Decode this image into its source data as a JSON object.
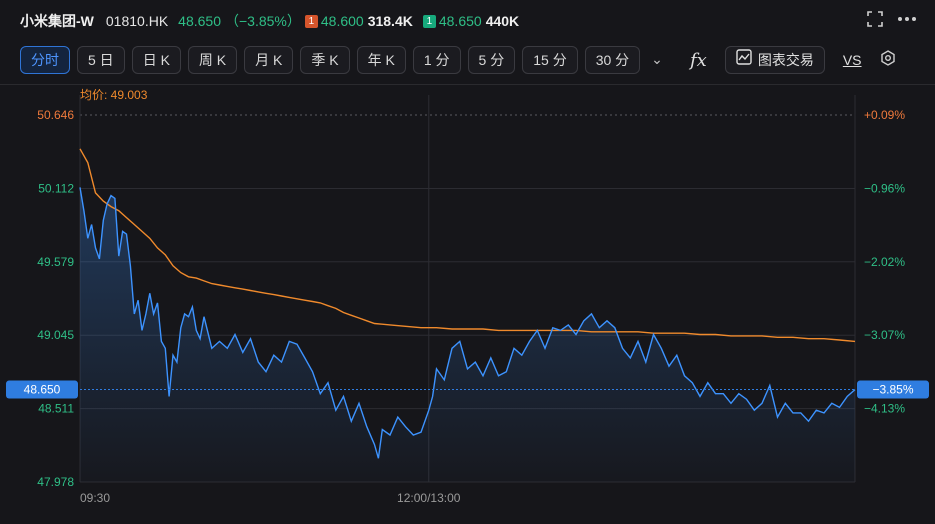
{
  "ticker": {
    "name": "小米集团-W",
    "code": "01810.HK",
    "price": "48.650",
    "change": "（−3.85%）",
    "ask_level": "1",
    "ask_price": "48.600",
    "ask_volume": "318.4K",
    "bid_level": "1",
    "bid_price": "48.650",
    "bid_volume": "440K"
  },
  "top_icons": {
    "fullscreen": "fullscreen-icon",
    "more": "more-icon"
  },
  "tabs": [
    {
      "label": "分时",
      "active": true
    },
    {
      "label": "5 日"
    },
    {
      "label": "日 K"
    },
    {
      "label": "周 K"
    },
    {
      "label": "月 K"
    },
    {
      "label": "季 K"
    },
    {
      "label": "年 K"
    },
    {
      "label": "1 分"
    },
    {
      "label": "5 分"
    },
    {
      "label": "15 分"
    },
    {
      "label": "30 分"
    }
  ],
  "tools": {
    "trade_label": "图表交易",
    "vs_label": "VS"
  },
  "colors": {
    "background": "#16161a",
    "price_line": "#3d93ff",
    "avg_line": "#f08a2c",
    "up": "#f07a3c",
    "down": "#2fbf87",
    "current_tag": "#2f7de0"
  },
  "chart_data": {
    "type": "line",
    "avg_label": "均价: 49.003",
    "y_ticks_left": [
      "50.646",
      "50.112",
      "49.579",
      "49.045",
      "48.511",
      "47.978"
    ],
    "y_ticks_right": [
      "+0.09%",
      "−0.96%",
      "−2.02%",
      "−3.07%",
      "−4.13%"
    ],
    "y_tick_values": [
      50.646,
      50.112,
      49.579,
      49.045,
      48.511,
      47.978
    ],
    "right_tick_values": [
      50.646,
      50.112,
      49.579,
      49.045,
      48.511
    ],
    "ylim": [
      47.978,
      50.646
    ],
    "x_labels": [
      "09:30",
      "12:00/13:00"
    ],
    "x_range": [
      0,
      100
    ],
    "x_label_positions": [
      0,
      45
    ],
    "current_price_label": "48.650",
    "current_pct_label": "−3.85%",
    "current_value": 48.65,
    "series": [
      {
        "values": [
          [
            0,
            50.12
          ],
          [
            0.5,
            49.95
          ],
          [
            1,
            49.75
          ],
          [
            1.5,
            49.85
          ],
          [
            2,
            49.68
          ],
          [
            2.5,
            49.6
          ],
          [
            3,
            49.88
          ],
          [
            3.5,
            50.0
          ],
          [
            4,
            50.06
          ],
          [
            4.5,
            50.04
          ],
          [
            5,
            49.62
          ],
          [
            5.5,
            49.8
          ],
          [
            6,
            49.78
          ],
          [
            6.5,
            49.55
          ],
          [
            7,
            49.2
          ],
          [
            7.5,
            49.3
          ],
          [
            8,
            49.08
          ],
          [
            8.5,
            49.2
          ],
          [
            9,
            49.35
          ],
          [
            9.5,
            49.2
          ],
          [
            10,
            49.28
          ],
          [
            10.5,
            49.0
          ],
          [
            11,
            48.95
          ],
          [
            11.5,
            48.6
          ],
          [
            12,
            48.9
          ],
          [
            12.5,
            48.85
          ],
          [
            13,
            49.1
          ],
          [
            13.5,
            49.2
          ],
          [
            14,
            49.18
          ],
          [
            14.5,
            49.25
          ],
          [
            15,
            49.08
          ],
          [
            15.5,
            49.02
          ],
          [
            16,
            49.18
          ],
          [
            17,
            48.95
          ],
          [
            18,
            49.0
          ],
          [
            19,
            48.95
          ],
          [
            20,
            49.05
          ],
          [
            21,
            48.92
          ],
          [
            22,
            49.02
          ],
          [
            23,
            48.85
          ],
          [
            24,
            48.78
          ],
          [
            25,
            48.9
          ],
          [
            26,
            48.85
          ],
          [
            27,
            49.0
          ],
          [
            28,
            48.98
          ],
          [
            29,
            48.88
          ],
          [
            30,
            48.78
          ],
          [
            31,
            48.62
          ],
          [
            32,
            48.7
          ],
          [
            33,
            48.5
          ],
          [
            34,
            48.6
          ],
          [
            35,
            48.42
          ],
          [
            36,
            48.55
          ],
          [
            37,
            48.38
          ],
          [
            38,
            48.25
          ],
          [
            38.5,
            48.15
          ],
          [
            39,
            48.36
          ],
          [
            40,
            48.32
          ],
          [
            41,
            48.45
          ],
          [
            42,
            48.38
          ],
          [
            43,
            48.32
          ],
          [
            44,
            48.34
          ],
          [
            45,
            48.5
          ],
          [
            45.5,
            48.6
          ],
          [
            46,
            48.8
          ],
          [
            47,
            48.72
          ],
          [
            48,
            48.95
          ],
          [
            49,
            49.0
          ],
          [
            50,
            48.8
          ],
          [
            51,
            48.85
          ],
          [
            52,
            48.75
          ],
          [
            53,
            48.88
          ],
          [
            54,
            48.75
          ],
          [
            55,
            48.78
          ],
          [
            56,
            48.95
          ],
          [
            57,
            48.9
          ],
          [
            58,
            49.0
          ],
          [
            59,
            49.08
          ],
          [
            60,
            48.95
          ],
          [
            61,
            49.1
          ],
          [
            62,
            49.08
          ],
          [
            63,
            49.12
          ],
          [
            64,
            49.05
          ],
          [
            65,
            49.15
          ],
          [
            66,
            49.2
          ],
          [
            67,
            49.1
          ],
          [
            68,
            49.15
          ],
          [
            69,
            49.1
          ],
          [
            70,
            48.95
          ],
          [
            71,
            48.88
          ],
          [
            72,
            49.0
          ],
          [
            73,
            48.85
          ],
          [
            74,
            49.05
          ],
          [
            75,
            48.95
          ],
          [
            76,
            48.82
          ],
          [
            77,
            48.9
          ],
          [
            78,
            48.75
          ],
          [
            79,
            48.7
          ],
          [
            80,
            48.6
          ],
          [
            81,
            48.7
          ],
          [
            82,
            48.62
          ],
          [
            83,
            48.62
          ],
          [
            84,
            48.55
          ],
          [
            85,
            48.62
          ],
          [
            86,
            48.58
          ],
          [
            87,
            48.5
          ],
          [
            88,
            48.55
          ],
          [
            89,
            48.68
          ],
          [
            90,
            48.45
          ],
          [
            91,
            48.55
          ],
          [
            92,
            48.48
          ],
          [
            93,
            48.48
          ],
          [
            94,
            48.42
          ],
          [
            95,
            48.5
          ],
          [
            96,
            48.48
          ],
          [
            97,
            48.55
          ],
          [
            98,
            48.52
          ],
          [
            99,
            48.6
          ],
          [
            100,
            48.65
          ]
        ]
      },
      {
        "values": [
          [
            0,
            50.4
          ],
          [
            1,
            50.3
          ],
          [
            2,
            50.08
          ],
          [
            3,
            50.02
          ],
          [
            4,
            49.98
          ],
          [
            5,
            49.95
          ],
          [
            6,
            49.9
          ],
          [
            7,
            49.85
          ],
          [
            8,
            49.8
          ],
          [
            9,
            49.75
          ],
          [
            10,
            49.68
          ],
          [
            11,
            49.63
          ],
          [
            12,
            49.55
          ],
          [
            13,
            49.5
          ],
          [
            14,
            49.47
          ],
          [
            15,
            49.46
          ],
          [
            16,
            49.44
          ],
          [
            17,
            49.42
          ],
          [
            18,
            49.41
          ],
          [
            19,
            49.4
          ],
          [
            20,
            49.39
          ],
          [
            21,
            49.38
          ],
          [
            22,
            49.37
          ],
          [
            23,
            49.36
          ],
          [
            24,
            49.35
          ],
          [
            25,
            49.34
          ],
          [
            26,
            49.33
          ],
          [
            27,
            49.32
          ],
          [
            28,
            49.31
          ],
          [
            29,
            49.3
          ],
          [
            30,
            49.29
          ],
          [
            31,
            49.28
          ],
          [
            32,
            49.26
          ],
          [
            33,
            49.24
          ],
          [
            34,
            49.21
          ],
          [
            35,
            49.19
          ],
          [
            36,
            49.17
          ],
          [
            37,
            49.15
          ],
          [
            38,
            49.13
          ],
          [
            40,
            49.12
          ],
          [
            42,
            49.11
          ],
          [
            44,
            49.1
          ],
          [
            46,
            49.1
          ],
          [
            48,
            49.09
          ],
          [
            50,
            49.09
          ],
          [
            52,
            49.09
          ],
          [
            54,
            49.08
          ],
          [
            56,
            49.08
          ],
          [
            58,
            49.08
          ],
          [
            60,
            49.08
          ],
          [
            62,
            49.08
          ],
          [
            64,
            49.08
          ],
          [
            66,
            49.07
          ],
          [
            68,
            49.07
          ],
          [
            70,
            49.07
          ],
          [
            72,
            49.07
          ],
          [
            74,
            49.06
          ],
          [
            76,
            49.06
          ],
          [
            78,
            49.06
          ],
          [
            80,
            49.05
          ],
          [
            82,
            49.05
          ],
          [
            84,
            49.04
          ],
          [
            86,
            49.04
          ],
          [
            88,
            49.04
          ],
          [
            90,
            49.03
          ],
          [
            92,
            49.03
          ],
          [
            94,
            49.02
          ],
          [
            96,
            49.02
          ],
          [
            98,
            49.01
          ],
          [
            100,
            49.0
          ]
        ]
      }
    ]
  }
}
